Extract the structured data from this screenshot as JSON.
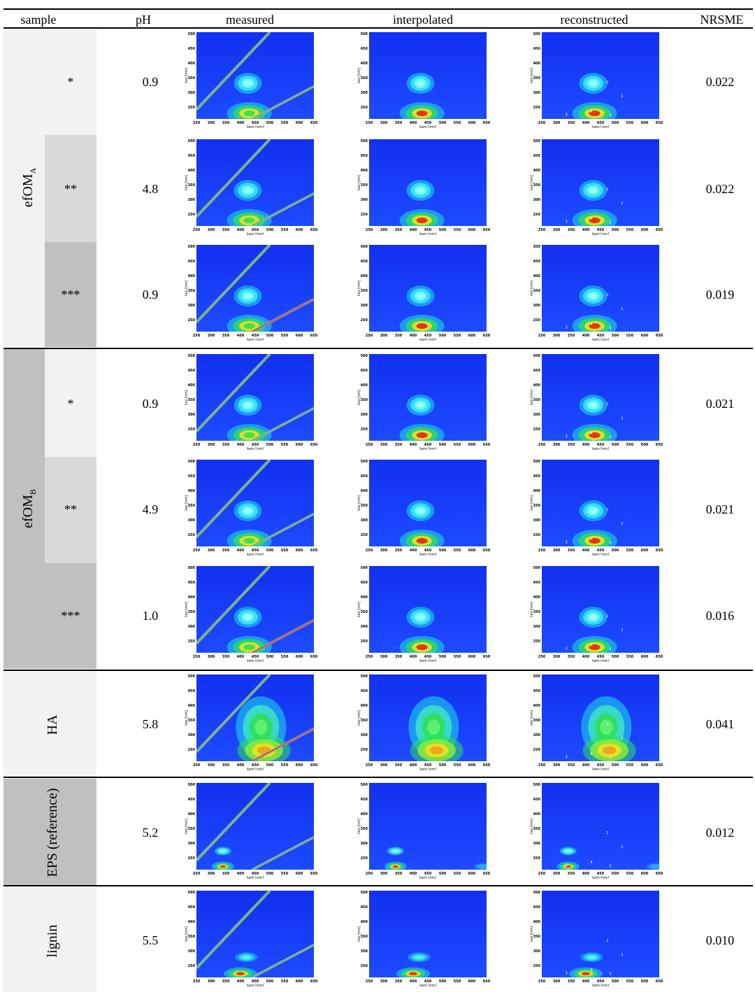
{
  "headers": [
    "sample",
    "pH",
    "measured",
    "interpolated",
    "reconstructed",
    "NRSME"
  ],
  "axis": {
    "x_ticks": [
      "250",
      "300",
      "350",
      "400",
      "450",
      "500",
      "550",
      "600",
      "650"
    ],
    "y_ticks": [
      "500",
      "450",
      "400",
      "350",
      "300",
      "250"
    ],
    "xlabel": "λem [nm]",
    "ylabel": "λex [nm]"
  },
  "component_labels": [
    "1",
    "2",
    "3",
    "4",
    "5"
  ],
  "groups": [
    {
      "label": "efOM",
      "sub": "A"
    },
    {
      "label": "efOM",
      "sub": "B"
    },
    {
      "label": "HA",
      "sub": ""
    },
    {
      "label": "EPS (reference)",
      "sub": ""
    },
    {
      "label": "lignin",
      "sub": ""
    }
  ],
  "rows": [
    {
      "marker": "*",
      "ph": "0.9",
      "nrsme": "0.022"
    },
    {
      "marker": "**",
      "ph": "4.8",
      "nrsme": "0.022"
    },
    {
      "marker": "***",
      "ph": "0.9",
      "nrsme": "0.019"
    },
    {
      "marker": "*",
      "ph": "0.9",
      "nrsme": "0.021"
    },
    {
      "marker": "**",
      "ph": "4.9",
      "nrsme": "0.021"
    },
    {
      "marker": "***",
      "ph": "1.0",
      "nrsme": "0.016"
    },
    {
      "marker": "",
      "ph": "5.8",
      "nrsme": "0.041"
    },
    {
      "marker": "",
      "ph": "5.2",
      "nrsme": "0.012"
    },
    {
      "marker": "",
      "ph": "5.5",
      "nrsme": "0.010"
    }
  ],
  "colors": {
    "shade_light": "#f2f2f2",
    "shade_mid": "#d9d9d9",
    "shade_dark": "#c0c0c0",
    "plot_bg": "#1a3cff",
    "peak_cyan": "#1ee0f0",
    "peak_green": "#2ee05a",
    "peak_yellow": "#f0e020",
    "peak_red": "#e62a10",
    "scatter_line": "#a0a0a0"
  }
}
